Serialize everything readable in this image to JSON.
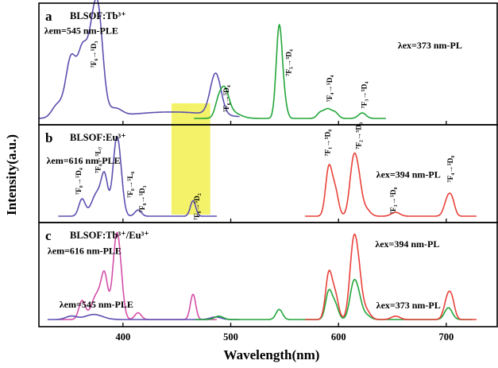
{
  "chart_data": {
    "type": "line",
    "xlabel": "Wavelength(nm)",
    "ylabel": "Intensity(a.u.)",
    "xlim": [
      322,
      748
    ],
    "xticks": [
      400,
      500,
      600,
      700
    ],
    "colors": {
      "ple": "#5b50b0",
      "pl_tb": "#22a63a",
      "pl_eu": "#e8413a",
      "ple_c": "#d44fa8",
      "highlight": "#f2f04f"
    },
    "highlight_range": [
      445,
      481
    ],
    "panels": [
      {
        "label": "a",
        "title": "BLSOF:Tb³⁺",
        "annotations": [
          {
            "text": "λem=545 nm-PLE",
            "x": 327,
            "y": 0.92
          },
          {
            "text": "λex=373 nm-PL",
            "x": 655,
            "y": 0.76
          }
        ],
        "transitions": [
          {
            "text": "⁷F₆→⁵D₃",
            "x": 375,
            "y": 0.55
          },
          {
            "text": "⁷F₆→⁵D₄",
            "x": 498,
            "y": 0.07
          },
          {
            "text": "⁷F₅→⁵D₄",
            "x": 556,
            "y": 0.46
          },
          {
            "text": "⁷F₄→⁵D₄",
            "x": 594,
            "y": 0.18
          },
          {
            "text": "⁷F₃→⁵D₄",
            "x": 626,
            "y": 0.11
          }
        ],
        "series": [
          {
            "name": "λem=545 nm-PLE",
            "color": "ple",
            "peaks": [
              [
                339,
                0.14,
                5
              ],
              [
                352,
                0.66,
                5
              ],
              [
                362,
                0.53,
                4
              ],
              [
                373,
                1.0,
                6
              ],
              [
                378,
                0.45,
                4
              ],
              [
                393,
                0.08,
                6
              ],
              [
                445,
                0.07,
                40
              ],
              [
                486,
                0.45,
                5
              ]
            ]
          },
          {
            "name": "λex=373 nm-PL",
            "color": "pl_tb",
            "peaks": [
              [
                488,
                0.12,
                3
              ],
              [
                494,
                0.28,
                4
              ],
              [
                500,
                0.07,
                8
              ],
              [
                545,
                1.0,
                2.8
              ],
              [
                550,
                0.13,
                2.5
              ],
              [
                583,
                0.06,
                3
              ],
              [
                590,
                0.1,
                3.5
              ],
              [
                597,
                0.06,
                3
              ],
              [
                622,
                0.06,
                3.5
              ]
            ]
          }
        ]
      },
      {
        "label": "b",
        "title": "BLSOF:Eu³⁺",
        "annotations": [
          {
            "text": "λem=616 nm-PLE",
            "x": 329,
            "y": 0.68
          },
          {
            "text": "λex=394 nm-PL",
            "x": 635,
            "y": 0.5
          }
        ],
        "transitions": [
          {
            "text": "⁷F₀→⁵D₄",
            "x": 361,
            "y": 0.28
          },
          {
            "text": "⁷F₀→⁵L₇",
            "x": 379,
            "y": 0.56
          },
          {
            "text": "⁷F₀→⁵L₆",
            "x": 409,
            "y": 0.24
          },
          {
            "text": "⁷F₀→⁵D₃",
            "x": 420,
            "y": 0.05
          },
          {
            "text": "⁷F₀→⁵D₂",
            "x": 471,
            "y": -0.05
          },
          {
            "text": "⁷F₁→⁵D₀",
            "x": 592,
            "y": 0.78
          },
          {
            "text": "⁷F₂→⁵D₀",
            "x": 621,
            "y": 0.87
          },
          {
            "text": "⁷F₃→⁵D₀",
            "x": 653,
            "y": 0.03
          },
          {
            "text": "⁷F₄→⁵D₀",
            "x": 706,
            "y": 0.44
          }
        ],
        "series": [
          {
            "name": "λem=616 nm-PLE",
            "color": "ple",
            "peaks": [
              [
                362,
                0.22,
                3
              ],
              [
                376,
                0.3,
                5
              ],
              [
                383,
                0.45,
                3
              ],
              [
                394,
                0.94,
                3.5
              ],
              [
                398,
                0.2,
                3
              ],
              [
                414,
                0.08,
                3
              ],
              [
                465,
                0.2,
                2.5
              ]
            ]
          },
          {
            "name": "λex=394 nm-PL",
            "color": "pl_eu",
            "peaks": [
              [
                591,
                0.62,
                3
              ],
              [
                597,
                0.32,
                3
              ],
              [
                614,
                0.72,
                3.5
              ],
              [
                619,
                0.3,
                3
              ],
              [
                625,
                0.1,
                4
              ],
              [
                653,
                0.05,
                4
              ],
              [
                702,
                0.26,
                3.5
              ],
              [
                706,
                0.1,
                2.5
              ]
            ]
          }
        ]
      },
      {
        "label": "c",
        "title": "BLSOF:Tb³⁺/Eu³⁺",
        "annotations": [
          {
            "text": "λem=616 nm-PLE",
            "x": 330,
            "y": 0.78
          },
          {
            "text": "λem=545 nm-PLE",
            "x": 341,
            "y": 0.14
          },
          {
            "text": "λex=394 nm-PL",
            "x": 634,
            "y": 0.86
          },
          {
            "text": "λex=373 nm-PL",
            "x": 635,
            "y": 0.13
          }
        ],
        "transitions": [],
        "series": [
          {
            "name": "λem=616 nm-PLE",
            "color": "ple_c",
            "peaks": [
              [
                362,
                0.22,
                3
              ],
              [
                376,
                0.3,
                5
              ],
              [
                383,
                0.45,
                3
              ],
              [
                394,
                0.94,
                3.5
              ],
              [
                398,
                0.2,
                3
              ],
              [
                414,
                0.08,
                3
              ],
              [
                465,
                0.3,
                2.5
              ]
            ]
          },
          {
            "name": "λem=545 nm-PLE",
            "color": "ple",
            "peaks": [
              [
                352,
                0.04,
                5
              ],
              [
                373,
                0.06,
                8
              ],
              [
                486,
                0.03,
                5
              ]
            ]
          },
          {
            "name": "λex=373 nm-PL",
            "color": "pl_tb",
            "peaks": [
              [
                489,
                0.04,
                4
              ],
              [
                545,
                0.12,
                3
              ],
              [
                591,
                0.33,
                3
              ],
              [
                597,
                0.17,
                3
              ],
              [
                614,
                0.42,
                3.5
              ],
              [
                619,
                0.17,
                3
              ],
              [
                625,
                0.06,
                4
              ],
              [
                702,
                0.14,
                3.5
              ]
            ]
          },
          {
            "name": "λex=394 nm-PL",
            "color": "pl_eu",
            "peaks": [
              [
                591,
                0.54,
                3
              ],
              [
                597,
                0.28,
                3
              ],
              [
                614,
                0.9,
                3.5
              ],
              [
                619,
                0.35,
                3
              ],
              [
                625,
                0.12,
                4
              ],
              [
                653,
                0.04,
                4
              ],
              [
                702,
                0.3,
                3.5
              ],
              [
                706,
                0.1,
                2.5
              ]
            ]
          }
        ]
      }
    ]
  }
}
